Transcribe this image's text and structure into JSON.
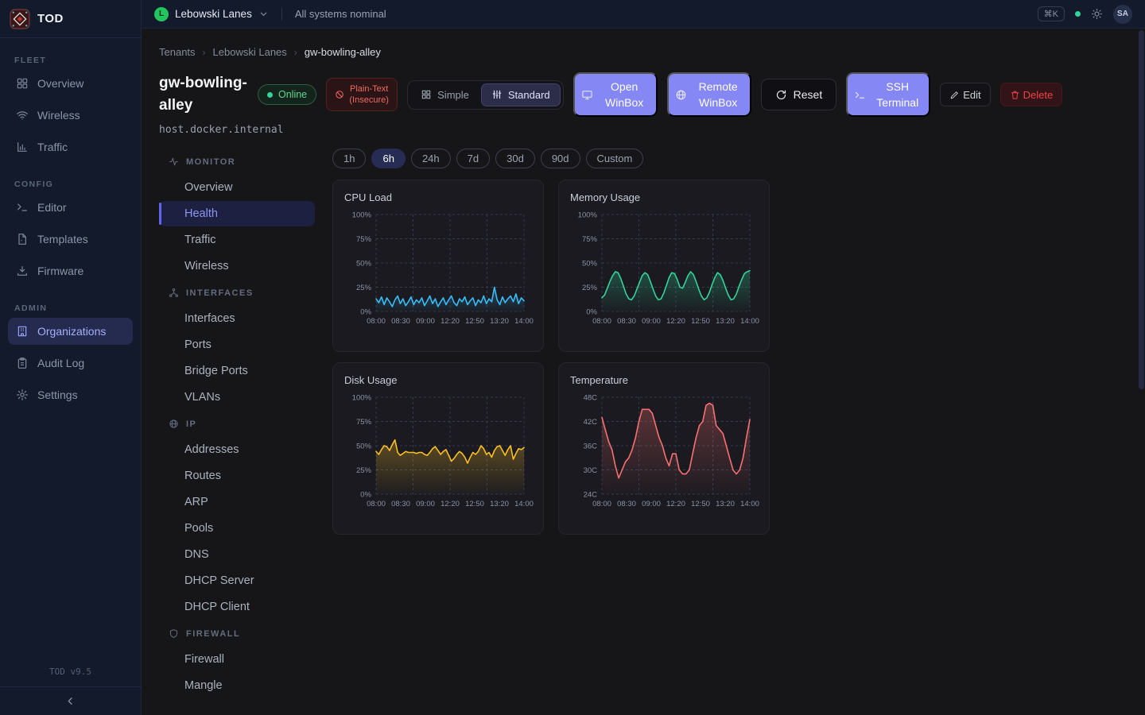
{
  "app": {
    "name": "TOD",
    "version": "TOD v9.5"
  },
  "topbar": {
    "tenant": "Lebowski Lanes",
    "tenant_initial": "L",
    "status": "All systems nominal",
    "shortcut": "⌘K",
    "avatar": "SA"
  },
  "sidebar": {
    "sections": [
      {
        "label": "FLEET",
        "items": [
          {
            "label": "Overview",
            "icon": "grid-icon"
          },
          {
            "label": "Wireless",
            "icon": "wifi-icon"
          },
          {
            "label": "Traffic",
            "icon": "bar-chart-icon"
          }
        ]
      },
      {
        "label": "CONFIG",
        "items": [
          {
            "label": "Editor",
            "icon": "terminal-icon"
          },
          {
            "label": "Templates",
            "icon": "file-icon"
          },
          {
            "label": "Firmware",
            "icon": "download-icon"
          }
        ]
      },
      {
        "label": "ADMIN",
        "items": [
          {
            "label": "Organizations",
            "icon": "building-icon"
          },
          {
            "label": "Audit Log",
            "icon": "clipboard-icon"
          },
          {
            "label": "Settings",
            "icon": "gear-icon"
          }
        ]
      }
    ]
  },
  "breadcrumb": {
    "items": [
      "Tenants",
      "Lebowski Lanes",
      "gw-bowling-alley"
    ]
  },
  "device": {
    "name": "gw-bowling-alley",
    "host": "host.docker.internal",
    "status": "Online",
    "warning": "Plain-Text (Insecure)"
  },
  "mode_toggle": {
    "options": [
      "Simple",
      "Standard"
    ],
    "selected": "Standard"
  },
  "actions": {
    "open_winbox": "Open WinBox",
    "remote_winbox": "Remote WinBox",
    "reset": "Reset",
    "ssh": "SSH Terminal",
    "edit": "Edit",
    "delete": "Delete"
  },
  "subnav": {
    "sections": [
      {
        "label": "MONITOR",
        "icon": "activity-icon",
        "items": [
          {
            "label": "Overview"
          },
          {
            "label": "Health"
          },
          {
            "label": "Traffic"
          },
          {
            "label": "Wireless"
          }
        ]
      },
      {
        "label": "INTERFACES",
        "icon": "network-icon",
        "items": [
          {
            "label": "Interfaces"
          },
          {
            "label": "Ports"
          },
          {
            "label": "Bridge Ports"
          },
          {
            "label": "VLANs"
          }
        ]
      },
      {
        "label": "IP",
        "icon": "globe-icon",
        "items": [
          {
            "label": "Addresses"
          },
          {
            "label": "Routes"
          },
          {
            "label": "ARP"
          },
          {
            "label": "Pools"
          },
          {
            "label": "DNS"
          },
          {
            "label": "DHCP Server"
          },
          {
            "label": "DHCP Client"
          }
        ]
      },
      {
        "label": "FIREWALL",
        "icon": "shield-icon",
        "items": [
          {
            "label": "Firewall"
          },
          {
            "label": "Mangle"
          }
        ]
      }
    ],
    "active": "Health"
  },
  "time_ranges": {
    "options": [
      "1h",
      "6h",
      "24h",
      "7d",
      "30d",
      "90d",
      "Custom"
    ],
    "selected": "6h"
  },
  "colors": {
    "accent": "#8587f4",
    "online": "#34d399",
    "danger": "#ef4444",
    "cpu": "#38bdf8",
    "memory": "#34d399",
    "disk": "#fbbf24",
    "temperature": "#f87171"
  },
  "chart_data": [
    {
      "type": "line",
      "title": "CPU Load",
      "color": "#38bdf8",
      "ymin": 0,
      "ymax": 100,
      "yticks": [
        "100%",
        "75%",
        "50%",
        "25%",
        "0%"
      ],
      "xticks": [
        "08:00",
        "08:30",
        "09:00",
        "12:20",
        "12:50",
        "13:20",
        "14:00"
      ],
      "grid": "dashed",
      "legend": "none",
      "values": [
        13,
        9,
        15,
        7,
        14,
        10,
        5,
        12,
        16,
        8,
        13,
        6,
        10,
        15,
        7,
        12,
        9,
        14,
        6,
        11,
        16,
        8,
        13,
        5,
        10,
        14,
        7,
        12,
        16,
        9,
        6,
        13,
        10,
        15,
        7,
        11,
        14,
        6,
        12,
        9,
        16,
        8,
        13,
        10,
        25,
        12,
        7,
        15,
        9,
        13,
        16,
        10,
        18,
        8,
        14,
        11
      ]
    },
    {
      "type": "line",
      "title": "Memory Usage",
      "color": "#34d399",
      "ymin": 0,
      "ymax": 100,
      "yticks": [
        "100%",
        "75%",
        "50%",
        "25%",
        "0%"
      ],
      "xticks": [
        "08:00",
        "08:30",
        "09:00",
        "12:20",
        "12:50",
        "13:20",
        "14:00"
      ],
      "grid": "dashed",
      "legend": "none",
      "values": [
        14,
        17,
        24,
        31,
        37,
        41,
        40,
        34,
        26,
        18,
        13,
        12,
        16,
        23,
        30,
        37,
        40,
        38,
        31,
        23,
        16,
        12,
        13,
        19,
        27,
        35,
        40,
        39,
        33,
        25,
        24,
        30,
        37,
        41,
        38,
        31,
        23,
        16,
        12,
        14,
        20,
        28,
        35,
        40,
        38,
        32,
        24,
        17,
        12,
        13,
        18,
        26,
        33,
        39,
        41,
        42
      ]
    },
    {
      "type": "line",
      "title": "Disk Usage",
      "color": "#fbbf24",
      "ymin": 0,
      "ymax": 100,
      "yticks": [
        "100%",
        "75%",
        "50%",
        "25%",
        "0%"
      ],
      "xticks": [
        "08:00",
        "08:30",
        "09:00",
        "12:20",
        "12:50",
        "13:20",
        "14:00"
      ],
      "grid": "dashed",
      "legend": "none",
      "values": [
        44,
        41,
        46,
        50,
        49,
        45,
        51,
        56,
        43,
        40,
        42,
        44,
        43,
        43,
        43,
        42,
        43,
        43,
        41,
        40,
        43,
        47,
        49,
        45,
        41,
        44,
        46,
        40,
        34,
        37,
        41,
        44,
        42,
        38,
        32,
        38,
        43,
        41,
        44,
        50,
        47,
        41,
        43,
        38,
        45,
        49,
        50,
        45,
        40,
        46,
        50,
        36,
        42,
        47,
        46,
        48
      ]
    },
    {
      "type": "line",
      "title": "Temperature",
      "color": "#f87171",
      "ymin": 24,
      "ymax": 48,
      "yticks": [
        "48C",
        "42C",
        "36C",
        "30C",
        "24C"
      ],
      "xticks": [
        "08:00",
        "08:30",
        "09:00",
        "12:20",
        "12:50",
        "13:20",
        "14:00"
      ],
      "grid": "dashed",
      "legend": "none",
      "values": [
        43,
        40,
        37,
        35,
        31,
        28,
        30,
        32,
        33,
        35,
        38,
        42,
        45,
        45,
        45,
        44,
        41,
        38,
        36,
        33,
        31,
        34,
        34,
        30,
        29,
        29,
        30,
        34,
        38,
        41,
        42,
        46,
        46.5,
        46,
        41,
        40,
        39,
        36,
        33,
        30,
        29,
        30,
        33,
        38,
        42.5
      ]
    }
  ]
}
